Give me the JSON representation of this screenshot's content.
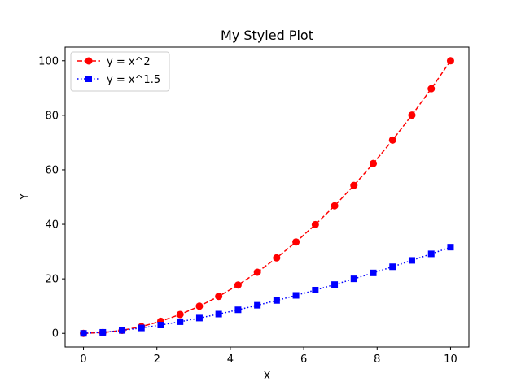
{
  "chart_data": {
    "type": "line",
    "title": "My Styled Plot",
    "xlabel": "X",
    "ylabel": "Y",
    "xlim": [
      -0.5,
      10.5
    ],
    "ylim": [
      -5,
      105
    ],
    "xticks": [
      0,
      2,
      4,
      6,
      8,
      10
    ],
    "yticks": [
      0,
      20,
      40,
      60,
      80,
      100
    ],
    "x": [
      0,
      0.526,
      1.053,
      1.579,
      2.105,
      2.632,
      3.158,
      3.684,
      4.211,
      4.737,
      5.263,
      5.789,
      6.316,
      6.842,
      7.368,
      7.895,
      8.421,
      8.947,
      9.474,
      10
    ],
    "series": [
      {
        "name": "y = x^2",
        "color": "#ff0000",
        "marker": "circle",
        "linestyle": "dashed",
        "values": [
          0,
          0.28,
          1.11,
          2.49,
          4.43,
          6.93,
          9.97,
          13.57,
          17.73,
          22.44,
          27.7,
          33.52,
          39.89,
          46.81,
          54.29,
          62.33,
          70.91,
          80.06,
          89.75,
          100
        ]
      },
      {
        "name": "y = x^1.5",
        "color": "#0000ff",
        "marker": "square",
        "linestyle": "dotted",
        "values": [
          0,
          0.38,
          1.08,
          1.98,
          3.05,
          4.27,
          5.61,
          7.07,
          8.64,
          10.31,
          12.07,
          13.93,
          15.87,
          17.9,
          20.0,
          22.18,
          24.44,
          26.77,
          29.16,
          31.62
        ]
      }
    ],
    "grid": false,
    "legend": "top-left"
  }
}
